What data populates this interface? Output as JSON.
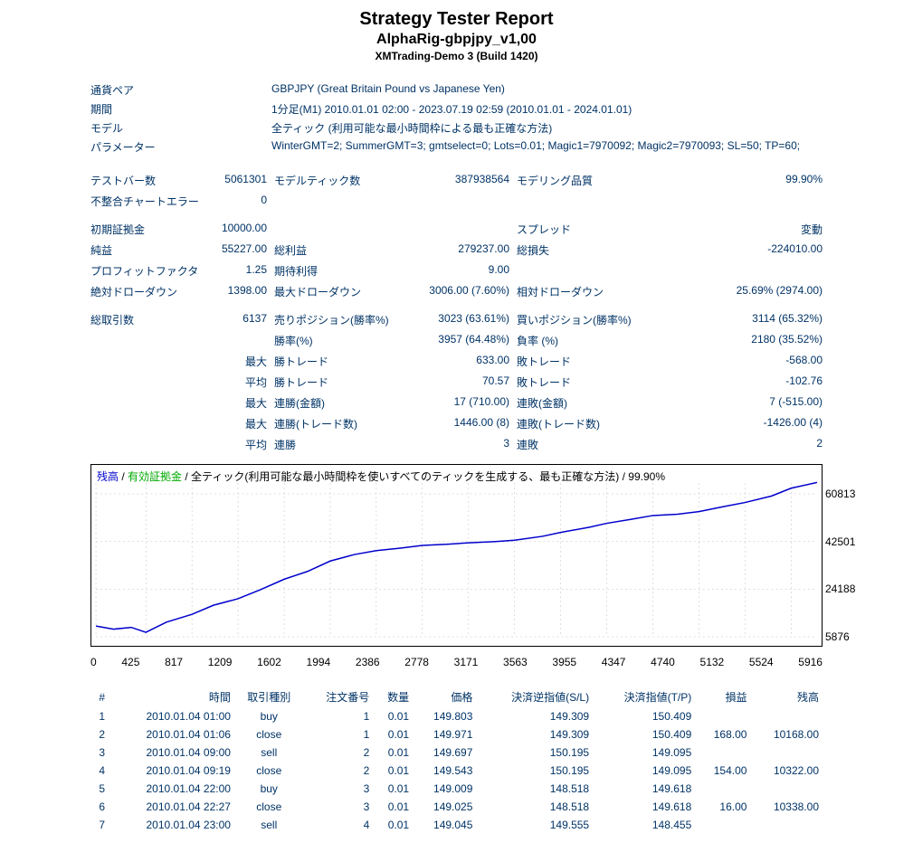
{
  "header": {
    "title": "Strategy Tester Report",
    "subtitle": "AlphaRig-gbpjpy_v1,00",
    "build": "XMTrading-Demo 3 (Build 1420)"
  },
  "info": [
    {
      "label": "通貨ペア",
      "value": "GBPJPY (Great Britain Pound vs Japanese Yen)"
    },
    {
      "label": "期間",
      "value": "1分足(M1) 2010.01.01 02:00 - 2023.07.19 02:59 (2010.01.01 - 2024.01.01)"
    },
    {
      "label": "モデル",
      "value": "全ティック (利用可能な最小時間枠による最も正確な方法)"
    },
    {
      "label": "パラメーター",
      "value": "WinterGMT=2; SummerGMT=3; gmtselect=0; Lots=0.01; Magic1=7970092; Magic2=7970093; SL=50; TP=60;"
    }
  ],
  "stats_groups": [
    [
      {
        "l1": "テストバー数",
        "v1": "5061301",
        "l2": "モデルティック数",
        "v2": "387938564",
        "l3": "モデリング品質",
        "v3": "99.90%"
      },
      {
        "l1": "不整合チャートエラー",
        "v1": "0",
        "l2": "",
        "v2": "",
        "l3": "",
        "v3": ""
      }
    ],
    [
      {
        "l1": "初期証拠金",
        "v1": "10000.00",
        "l2": "",
        "v2": "",
        "l3": "スプレッド",
        "v3": "変動"
      },
      {
        "l1": "純益",
        "v1": "55227.00",
        "l2": "総利益",
        "v2": "279237.00",
        "l3": "総損失",
        "v3": "-224010.00"
      },
      {
        "l1": "プロフィットファクタ",
        "v1": "1.25",
        "l2": "期待利得",
        "v2": "9.00",
        "l3": "",
        "v3": ""
      },
      {
        "l1": "絶対ドローダウン",
        "v1": "1398.00",
        "l2": "最大ドローダウン",
        "v2": "3006.00 (7.60%)",
        "l3": "相対ドローダウン",
        "v3": "25.69% (2974.00)"
      }
    ],
    [
      {
        "l1": "総取引数",
        "v1": "6137",
        "l2": "売りポジション(勝率%)",
        "v2": "3023 (63.61%)",
        "l3": "買いポジション(勝率%)",
        "v3": "3114 (65.32%)"
      },
      {
        "l1": "",
        "v1": "",
        "l2": "勝率(%)",
        "v2": "3957 (64.48%)",
        "l3": "負率 (%)",
        "v3": "2180 (35.52%)"
      },
      {
        "l1": "",
        "v1": "最大",
        "l2": "勝トレード",
        "v2": "633.00",
        "l3": "敗トレード",
        "v3": "-568.00"
      },
      {
        "l1": "",
        "v1": "平均",
        "l2": "勝トレード",
        "v2": "70.57",
        "l3": "敗トレード",
        "v3": "-102.76"
      },
      {
        "l1": "",
        "v1": "最大",
        "l2": "連勝(金額)",
        "v2": "17 (710.00)",
        "l3": "連敗(金額)",
        "v3": "7 (-515.00)"
      },
      {
        "l1": "",
        "v1": "最大",
        "l2": "連勝(トレード数)",
        "v2": "1446.00 (8)",
        "l3": "連敗(トレード数)",
        "v3": "-1426.00 (4)"
      },
      {
        "l1": "",
        "v1": "平均",
        "l2": "連勝",
        "v2": "3",
        "l3": "連敗",
        "v3": "2"
      }
    ]
  ],
  "chart": {
    "legend_balance": "残高",
    "legend_equity": "有効証拠金",
    "legend_rest": " / 全ティック(利用可能な最小時間枠を使いすべてのティックを生成する、最も正確な方法) / 99.90%",
    "y_min": 5876,
    "y_max": 65000,
    "y_ticks": [
      "60813",
      "42501",
      "24188",
      "5876"
    ],
    "y_tick_values": [
      60813,
      42501,
      24188,
      5876
    ],
    "x_ticks": [
      "0",
      "425",
      "817",
      "1209",
      "1602",
      "1994",
      "2386",
      "2778",
      "3171",
      "3563",
      "3955",
      "4347",
      "4740",
      "5132",
      "5524",
      "5916"
    ],
    "x_max": 6137,
    "line_color": "#0000cc",
    "grid_color": "#c0c0c0",
    "background": "#ffffff",
    "data_points": [
      [
        0,
        10000
      ],
      [
        150,
        8800
      ],
      [
        300,
        9500
      ],
      [
        425,
        7600
      ],
      [
        600,
        11500
      ],
      [
        817,
        14500
      ],
      [
        1000,
        18000
      ],
      [
        1209,
        20500
      ],
      [
        1400,
        24000
      ],
      [
        1602,
        28000
      ],
      [
        1800,
        31000
      ],
      [
        1994,
        35000
      ],
      [
        2200,
        37500
      ],
      [
        2386,
        39000
      ],
      [
        2600,
        40000
      ],
      [
        2778,
        41000
      ],
      [
        3000,
        41500
      ],
      [
        3171,
        42000
      ],
      [
        3400,
        42500
      ],
      [
        3563,
        43000
      ],
      [
        3800,
        44500
      ],
      [
        3955,
        46000
      ],
      [
        4200,
        48000
      ],
      [
        4347,
        49500
      ],
      [
        4550,
        51000
      ],
      [
        4740,
        52500
      ],
      [
        4950,
        53000
      ],
      [
        5132,
        54000
      ],
      [
        5350,
        56000
      ],
      [
        5524,
        57500
      ],
      [
        5750,
        60000
      ],
      [
        5916,
        63000
      ],
      [
        6137,
        65227
      ]
    ]
  },
  "trades": {
    "headers": [
      "#",
      "時間",
      "取引種別",
      "注文番号",
      "数量",
      "価格",
      "決済逆指値(S/L)",
      "決済指値(T/P)",
      "損益",
      "残高"
    ],
    "rows": [
      [
        "1",
        "2010.01.04 01:00",
        "buy",
        "1",
        "0.01",
        "149.803",
        "149.309",
        "150.409",
        "",
        ""
      ],
      [
        "2",
        "2010.01.04 01:06",
        "close",
        "1",
        "0.01",
        "149.971",
        "149.309",
        "150.409",
        "168.00",
        "10168.00"
      ],
      [
        "3",
        "2010.01.04 09:00",
        "sell",
        "2",
        "0.01",
        "149.697",
        "150.195",
        "149.095",
        "",
        ""
      ],
      [
        "4",
        "2010.01.04 09:19",
        "close",
        "2",
        "0.01",
        "149.543",
        "150.195",
        "149.095",
        "154.00",
        "10322.00"
      ],
      [
        "5",
        "2010.01.04 22:00",
        "buy",
        "3",
        "0.01",
        "149.009",
        "148.518",
        "149.618",
        "",
        ""
      ],
      [
        "6",
        "2010.01.04 22:27",
        "close",
        "3",
        "0.01",
        "149.025",
        "148.518",
        "149.618",
        "16.00",
        "10338.00"
      ],
      [
        "7",
        "2010.01.04 23:00",
        "sell",
        "4",
        "0.01",
        "149.045",
        "149.555",
        "148.455",
        "",
        ""
      ]
    ]
  }
}
